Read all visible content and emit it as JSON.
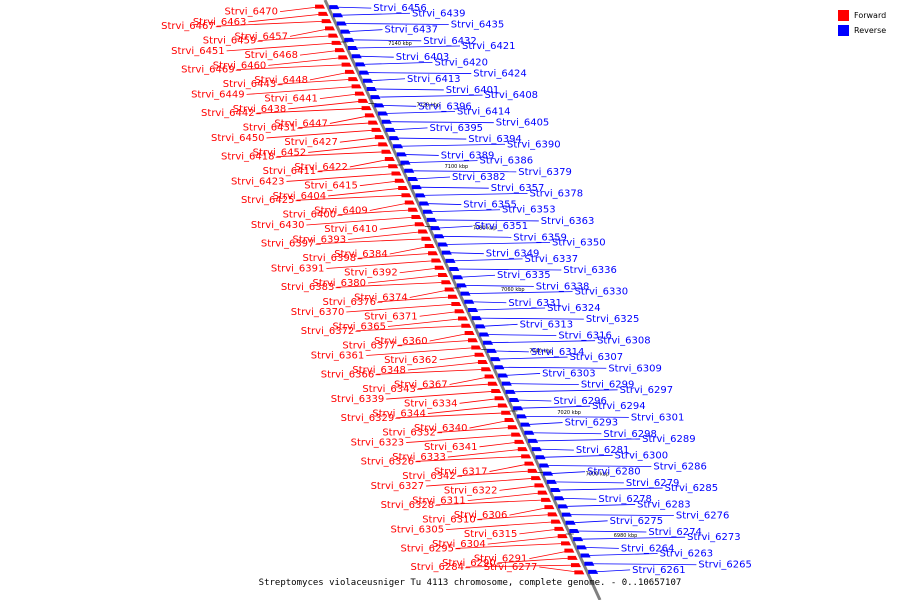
{
  "caption": "Streptomyces violaceusniger Tu 4113 chromosome, complete genome. - 0..10657107",
  "legend": [
    {
      "label": "Forward",
      "color": "#ff0000"
    },
    {
      "label": "Reverse",
      "color": "#0000ff"
    }
  ],
  "colors": {
    "forward": "#ff0000",
    "reverse": "#0000ff",
    "axis": "#808080"
  },
  "scale_ticks": [
    "7140 kbp",
    "7120 kbp",
    "7100 kbp",
    "7080 kbp",
    "7060 kbp",
    "7040 kbp",
    "7020 kbp",
    "7000 kbp",
    "6980 kbp"
  ],
  "forward_genes": [
    "Strvi_6470",
    "Strvi_6463",
    "Strvi_6467",
    "Strvi_6457",
    "Strvi_6459",
    "Strvi_6451",
    "Strvi_6468",
    "Strvi_6460",
    "Strvi_6469",
    "Strvi_6448",
    "Strvi_6443",
    "Strvi_6449",
    "Strvi_6441",
    "Strvi_6438",
    "Strvi_6442",
    "Strvi_6447",
    "Strvi_6431",
    "Strvi_6450",
    "Strvi_6427",
    "Strvi_6452",
    "Strvi_6418",
    "Strvi_6422",
    "Strvi_6411",
    "Strvi_6423",
    "Strvi_6415",
    "Strvi_6404",
    "Strvi_6425",
    "Strvi_6409",
    "Strvi_6400",
    "Strvi_6430",
    "Strvi_6410",
    "Strvi_6393",
    "Strvi_6397",
    "Strvi_6384",
    "Strvi_6398",
    "Strvi_6391",
    "Strvi_6392",
    "Strvi_6380",
    "Strvi_6383",
    "Strvi_6374",
    "Strvi_6376",
    "Strvi_6370",
    "Strvi_6371",
    "Strvi_6365",
    "Strvi_6372",
    "Strvi_6360",
    "Strvi_6377",
    "Strvi_6361",
    "Strvi_6362",
    "Strvi_6348",
    "Strvi_6366",
    "Strvi_6367",
    "Strvi_6343",
    "Strvi_6339",
    "Strvi_6334",
    "Strvi_6344",
    "Strvi_6329",
    "Strvi_6340",
    "Strvi_6332",
    "Strvi_6323",
    "Strvi_6341",
    "Strvi_6333",
    "Strvi_6326",
    "Strvi_6317",
    "Strvi_6342",
    "Strvi_6327",
    "Strvi_6322",
    "Strvi_6311",
    "Strvi_6328",
    "Strvi_6306",
    "Strvi_6310",
    "Strvi_6305",
    "Strvi_6315",
    "Strvi_6304",
    "Strvi_6295",
    "Strvi_6291",
    "Strvi_6290",
    "Strvi_6284",
    "Strvi_6277"
  ],
  "reverse_genes": [
    "Strvi_6456",
    "Strvi_6439",
    "Strvi_6435",
    "Strvi_6437",
    "Strvi_6432",
    "Strvi_6421",
    "Strvi_6403",
    "Strvi_6420",
    "Strvi_6424",
    "Strvi_6413",
    "Strvi_6401",
    "Strvi_6408",
    "Strvi_6396",
    "Strvi_6414",
    "Strvi_6405",
    "Strvi_6395",
    "Strvi_6394",
    "Strvi_6390",
    "Strvi_6389",
    "Strvi_6386",
    "Strvi_6379",
    "Strvi_6382",
    "Strvi_6357",
    "Strvi_6378",
    "Strvi_6355",
    "Strvi_6353",
    "Strvi_6363",
    "Strvi_6351",
    "Strvi_6359",
    "Strvi_6350",
    "Strvi_6349",
    "Strvi_6337",
    "Strvi_6336",
    "Strvi_6335",
    "Strvi_6338",
    "Strvi_6330",
    "Strvi_6331",
    "Strvi_6324",
    "Strvi_6325",
    "Strvi_6313",
    "Strvi_6316",
    "Strvi_6308",
    "Strvi_6314",
    "Strvi_6307",
    "Strvi_6309",
    "Strvi_6303",
    "Strvi_6299",
    "Strvi_6297",
    "Strvi_6296",
    "Strvi_6294",
    "Strvi_6301",
    "Strvi_6293",
    "Strvi_6298",
    "Strvi_6289",
    "Strvi_6281",
    "Strvi_6300",
    "Strvi_6286",
    "Strvi_6280",
    "Strvi_6279",
    "Strvi_6285",
    "Strvi_6278",
    "Strvi_6283",
    "Strvi_6276",
    "Strvi_6275",
    "Strvi_6274",
    "Strvi_6273",
    "Strvi_6264",
    "Strvi_6263",
    "Strvi_6265",
    "Strvi_6261"
  ]
}
